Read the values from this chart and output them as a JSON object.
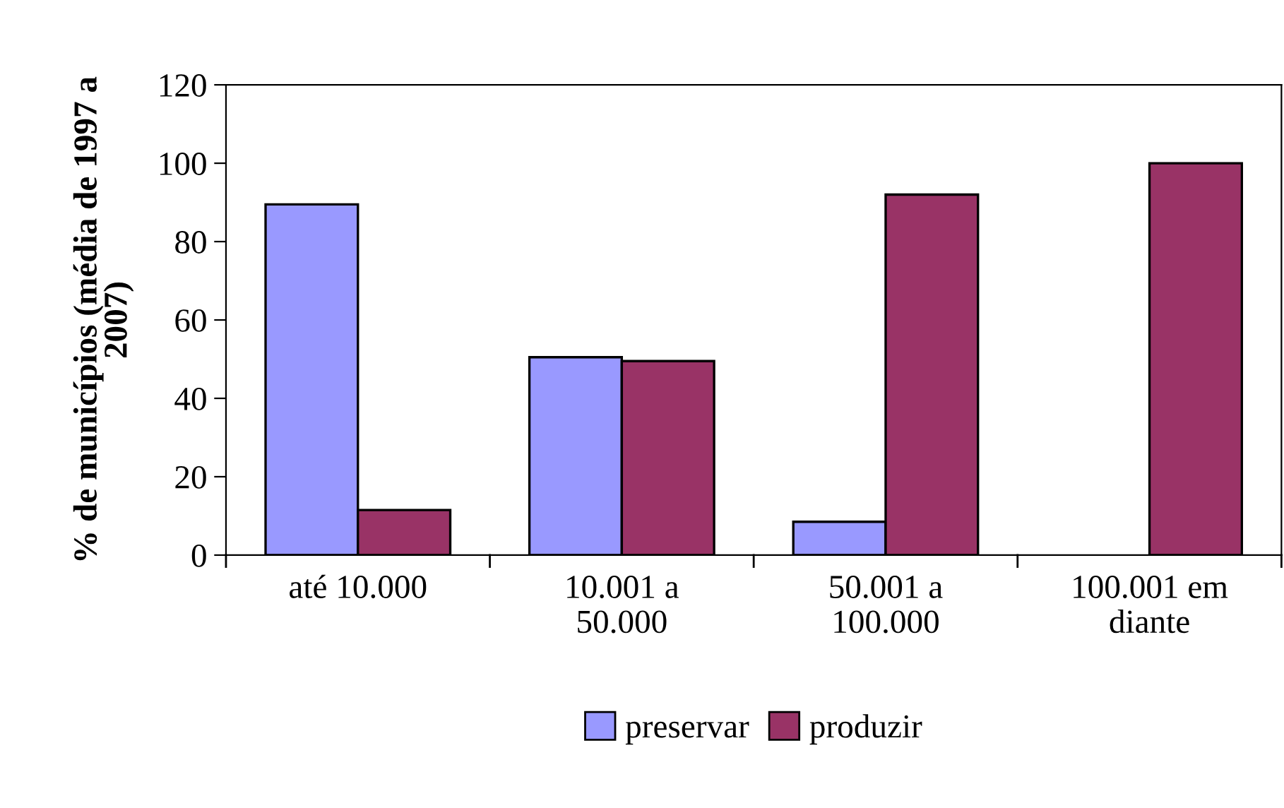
{
  "chart_data": {
    "type": "bar",
    "ylabel": "% de municípios (média de 1997 a\n2007)",
    "categories": [
      "até 10.000",
      "10.001 a\n50.000",
      "50.001 a\n100.000",
      "100.001 em\ndiante"
    ],
    "series": [
      {
        "name": "preservar",
        "color": "#9999ff",
        "values": [
          89.5,
          50.5,
          8.5,
          0
        ]
      },
      {
        "name": "produzir",
        "color": "#993366",
        "values": [
          11.5,
          49.5,
          92,
          100
        ]
      }
    ],
    "ylim": [
      0,
      120
    ],
    "yticks": [
      0,
      20,
      40,
      60,
      80,
      100,
      120
    ],
    "grid": false,
    "legend": "bottom"
  }
}
